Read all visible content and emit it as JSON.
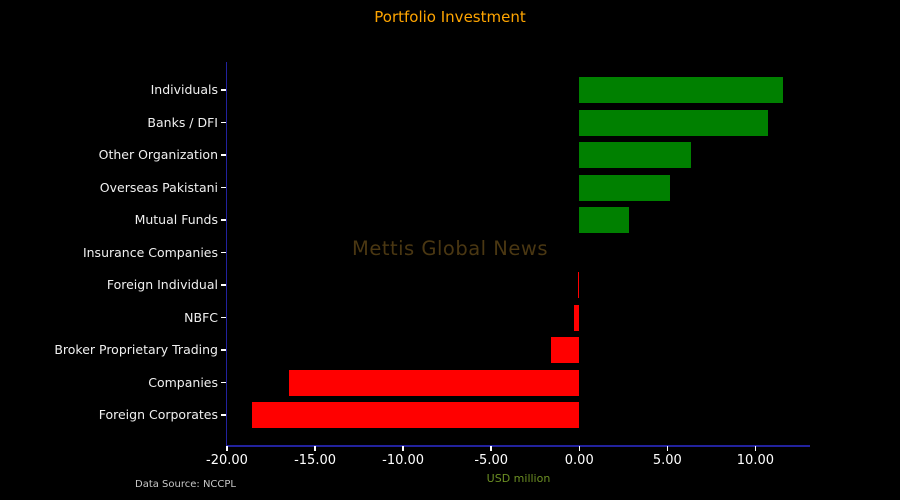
{
  "title": "Portfolio Investment",
  "watermark": "Mettis Global News",
  "source_note": "Data Source: NCCPL",
  "colors": {
    "background": "#000000",
    "title": "#ffa500",
    "positive_bar": "#008000",
    "negative_bar": "#ff0000",
    "axis_spine": "#22229e",
    "tick_label": "#ffffff",
    "y_label": "#f0f0f0",
    "xlabel": "#6b8e23",
    "source": "#c8c8c8",
    "watermark": "#4a3712"
  },
  "chart_data": {
    "type": "bar",
    "orientation": "horizontal",
    "title": "Portfolio Investment",
    "xlabel": "USD million",
    "ylabel": "",
    "categories": [
      "Individuals",
      "Banks / DFI",
      "Other Organization",
      "Overseas Pakistani",
      "Mutual Funds",
      "Insurance Companies",
      "Foreign Individual",
      "NBFC",
      "Broker Proprietary Trading",
      "Companies",
      "Foreign Corporates"
    ],
    "values": [
      11.58,
      10.69,
      6.32,
      5.14,
      2.81,
      0.0,
      -0.08,
      -0.28,
      -1.58,
      -16.49,
      -18.6
    ],
    "xlim": [
      -20.0,
      13.1
    ],
    "xticks": [
      -20,
      -15,
      -10,
      -5,
      0,
      5,
      10
    ],
    "xtick_labels": [
      "-20.00",
      "-15.00",
      "-10.00",
      "-5.00",
      "0.00",
      "5.00",
      "10.00"
    ],
    "grid": false,
    "legend": null,
    "units": "USD million",
    "bar_color_positive": "#008000",
    "bar_color_negative": "#ff0000"
  }
}
